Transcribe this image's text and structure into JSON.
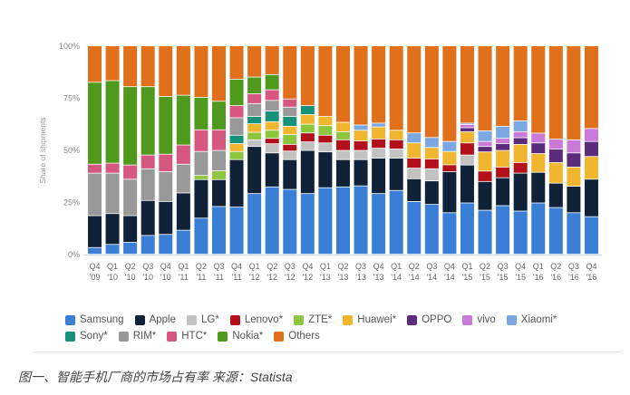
{
  "caption": "图一、智能手机厂商的市场占有率 来源：Statista",
  "chart_data": {
    "type": "bar",
    "stacked": true,
    "title": "",
    "xlabel": "",
    "ylabel": "Share of shipments",
    "ylim": [
      0,
      100
    ],
    "yticks": [
      "0%",
      "25%",
      "50%",
      "75%",
      "100%"
    ],
    "grid": false,
    "legend_position": "bottom",
    "categories": [
      [
        "Q4",
        "'09"
      ],
      [
        "Q1",
        "'10"
      ],
      [
        "Q2",
        "'10"
      ],
      [
        "Q3",
        "'10"
      ],
      [
        "Q4",
        "'10"
      ],
      [
        "Q1",
        "'11"
      ],
      [
        "Q2",
        "'11"
      ],
      [
        "Q3",
        "'11"
      ],
      [
        "Q4",
        "'11"
      ],
      [
        "Q1",
        "'12"
      ],
      [
        "Q2",
        "'12"
      ],
      [
        "Q3",
        "'12"
      ],
      [
        "Q4",
        "'12"
      ],
      [
        "Q1",
        "'13"
      ],
      [
        "Q2",
        "'13"
      ],
      [
        "Q3",
        "'13"
      ],
      [
        "Q4",
        "'13"
      ],
      [
        "Q1",
        "'14"
      ],
      [
        "Q2",
        "'14"
      ],
      [
        "Q3",
        "'14"
      ],
      [
        "Q4",
        "'14"
      ],
      [
        "Q1",
        "'15"
      ],
      [
        "Q2",
        "'15"
      ],
      [
        "Q3",
        "'15"
      ],
      [
        "Q4",
        "'15"
      ],
      [
        "Q1",
        "'16"
      ],
      [
        "Q2",
        "'16"
      ],
      [
        "Q3",
        "'16"
      ],
      [
        "Q4",
        "'16"
      ]
    ],
    "series": [
      {
        "name": "Samsung",
        "color": "#3a7fd5",
        "values": [
          3.2,
          4.7,
          5.7,
          9,
          9.5,
          11.5,
          17.3,
          22.9,
          22.6,
          29.1,
          32.3,
          31.1,
          29.1,
          31.9,
          32.3,
          32.8,
          29.1,
          30.6,
          25.3,
          23.9,
          19.9,
          24.6,
          21.1,
          23.3,
          20.7,
          24.6,
          22.4,
          19.9,
          18
        ]
      },
      {
        "name": "Apple",
        "color": "#0f2238",
        "values": [
          15.3,
          14.8,
          12.8,
          16.8,
          15.8,
          17.9,
          18.5,
          12.9,
          22.8,
          22.6,
          16.3,
          14.3,
          20.7,
          17.2,
          13.1,
          12.6,
          17,
          15.5,
          10.9,
          11.3,
          19.7,
          18.2,
          13.8,
          13.4,
          18.2,
          14.7,
          11.7,
          12.7,
          18
        ]
      },
      {
        "name": "LG*",
        "color": "#c2c2c2",
        "values": [
          0,
          0,
          0,
          0,
          0,
          0,
          0,
          0,
          0,
          3.2,
          4.4,
          4.1,
          4.1,
          4.3,
          4.4,
          4.4,
          4.8,
          4.4,
          5.1,
          5.8,
          0,
          4.8,
          0,
          0,
          0,
          0,
          0,
          0,
          0
        ]
      },
      {
        "name": "Lenovo*",
        "color": "#b3111a",
        "values": [
          0,
          0,
          0,
          0,
          0,
          0,
          0,
          0,
          0,
          0,
          2.6,
          3.2,
          4.3,
          3.7,
          5.1,
          4.6,
          4.4,
          4.4,
          4.8,
          4.7,
          3.3,
          5.8,
          5,
          5.1,
          5.1,
          0,
          0,
          0,
          0
        ]
      },
      {
        "name": "ZTE*",
        "color": "#8cc63f",
        "values": [
          0,
          0,
          0,
          0,
          0,
          0,
          2,
          4.2,
          3.9,
          3.6,
          3.9,
          4.7,
          4.2,
          4.6,
          3.9,
          0,
          0,
          0,
          0,
          0,
          0,
          0,
          0,
          0,
          0,
          0,
          0,
          0,
          0
        ]
      },
      {
        "name": "Huawei*",
        "color": "#f1b630",
        "values": [
          0,
          0,
          0,
          0,
          0,
          0,
          0,
          0,
          3.8,
          4.1,
          4.1,
          4,
          4.6,
          4.4,
          4.5,
          5.1,
          5.8,
          4.6,
          7.3,
          5.5,
          6.4,
          5.4,
          9.2,
          8,
          8.7,
          9,
          9.9,
          9.2,
          10.9
        ]
      },
      {
        "name": "OPPO",
        "color": "#5b2b7c",
        "values": [
          0,
          0,
          0,
          0,
          0,
          0,
          0,
          0,
          0,
          0,
          0,
          0,
          0,
          0,
          0,
          0,
          0,
          0,
          0,
          0,
          0,
          1.9,
          2.6,
          3.3,
          3.2,
          5.1,
          6.5,
          6.8,
          7.2
        ]
      },
      {
        "name": "vivo",
        "color": "#c97ad8",
        "values": [
          0,
          0,
          0,
          0,
          0,
          0,
          0,
          0,
          0,
          0,
          0,
          0,
          0,
          0,
          0,
          0,
          0,
          0,
          0,
          0,
          0,
          1.5,
          2.4,
          2.5,
          2.9,
          4.7,
          4.7,
          6.3,
          6.2
        ]
      },
      {
        "name": "Xiaomi*",
        "color": "#7ba8e2",
        "values": [
          0,
          0,
          0,
          0,
          0,
          0,
          0,
          0,
          0,
          0,
          0,
          0,
          0,
          0,
          0,
          2.5,
          1.8,
          0,
          4.8,
          4.8,
          4.8,
          0.7,
          5.1,
          5.8,
          5.2,
          0,
          0,
          0,
          0
        ]
      },
      {
        "name": "Sony*",
        "color": "#16917a",
        "values": [
          0,
          0,
          0,
          0,
          0,
          0,
          0,
          0,
          4,
          3.5,
          5.1,
          4.7,
          4.3,
          0,
          0,
          0,
          0,
          0,
          0,
          0,
          0,
          0,
          0,
          0,
          0,
          0,
          0,
          0,
          0
        ]
      },
      {
        "name": "RIM*",
        "color": "#999999",
        "values": [
          20.4,
          19.4,
          17.5,
          15.2,
          14.3,
          13.8,
          11.5,
          9.8,
          8.4,
          6.2,
          5.1,
          4.5,
          0,
          0,
          0,
          0,
          0,
          0,
          0,
          0,
          0,
          0,
          0,
          0,
          0,
          0,
          0,
          0,
          0
        ]
      },
      {
        "name": "HTC*",
        "color": "#d6577f",
        "values": [
          4.3,
          4.8,
          6.8,
          6.6,
          8.4,
          9.2,
          10.4,
          9.9,
          5.8,
          4.7,
          5.1,
          3.9,
          0,
          0,
          0,
          0,
          0,
          0,
          0,
          0,
          0,
          0,
          0,
          0,
          0,
          0,
          0,
          0,
          0
        ]
      },
      {
        "name": "Nokia*",
        "color": "#4f9a1c",
        "values": [
          39.3,
          39.6,
          37.6,
          32.8,
          27.7,
          23.9,
          15.6,
          13.7,
          12.7,
          8,
          7.3,
          0,
          0,
          0,
          0,
          0,
          0,
          0,
          0,
          0,
          0,
          0,
          0,
          0,
          0,
          0,
          0,
          0,
          0
        ]
      },
      {
        "name": "Others",
        "color": "#e0701c",
        "values": [
          17.5,
          16.7,
          19.6,
          19.6,
          24.3,
          23.7,
          24.7,
          26.6,
          16,
          15,
          13.8,
          25.5,
          28.7,
          33.9,
          36.7,
          38,
          37.1,
          40.5,
          41.8,
          44,
          45.9,
          37.1,
          40.8,
          38.6,
          36,
          41.9,
          44.8,
          45.1,
          39.7
        ]
      }
    ],
    "legend_rows": [
      [
        "Samsung",
        "Apple",
        "LG*",
        "Lenovo*",
        "ZTE*",
        "Huawei*",
        "OPPO",
        "vivo",
        "Xiaomi*"
      ],
      [
        "Sony*",
        "RIM*",
        "HTC*",
        "Nokia*",
        "Others"
      ]
    ]
  }
}
